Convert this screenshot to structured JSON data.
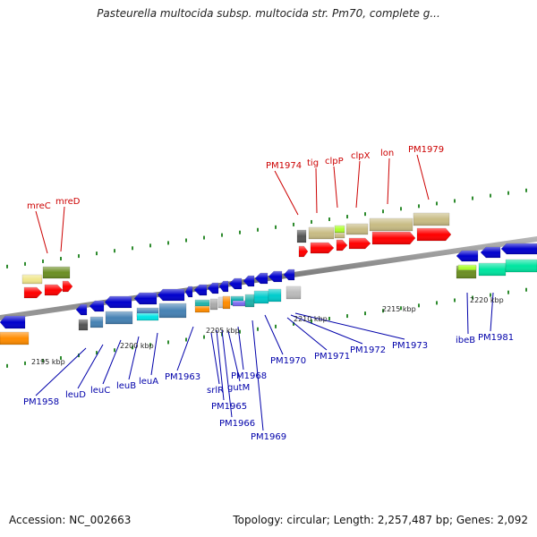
{
  "header": {
    "title": "Pasteurella multocida subsp. multocida str. Pm70, complete g..."
  },
  "footer": {
    "accession": "Accession: NC_002663",
    "summary": "Topology: circular; Length: 2,257,487 bp; Genes: 2,092"
  },
  "colors": {
    "backbone": "#8c8c8c",
    "forward_label": "#cc0000",
    "reverse_label": "#0000aa",
    "tick": "#2e8b2e"
  },
  "ticks": [
    "2195 kbp",
    "2200 kbp",
    "2205 kbp",
    "2210 kbp",
    "2215 kbp",
    "2220 kbp"
  ],
  "labels_forward": [
    "mreC",
    "mreD",
    "PM1974",
    "tig",
    "clpP",
    "clpX",
    "lon",
    "PM1979"
  ],
  "labels_reverse": [
    "PM1958",
    "leuD",
    "leuC",
    "leuB",
    "leuA",
    "PM1963",
    "srlR",
    "PM1965",
    "gutM",
    "PM1966",
    "PM1968",
    "PM1969",
    "PM1970",
    "PM1971",
    "PM1972",
    "PM1973",
    "ibeB",
    "PM1981"
  ]
}
